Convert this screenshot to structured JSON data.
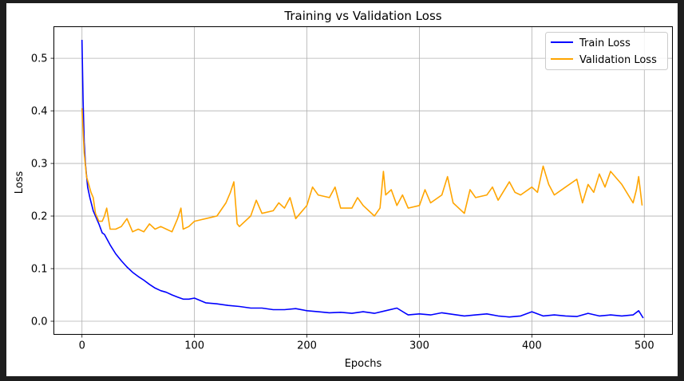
{
  "chart_data": {
    "type": "line",
    "title": "Training vs Validation Loss",
    "xlabel": "Epochs",
    "ylabel": "Loss",
    "xlim": [
      -25,
      525
    ],
    "ylim": [
      -0.025,
      0.56
    ],
    "xticks": [
      0,
      100,
      200,
      300,
      400,
      500
    ],
    "yticks": [
      0.0,
      0.1,
      0.2,
      0.3,
      0.4,
      0.5
    ],
    "xtick_labels": [
      "0",
      "100",
      "200",
      "300",
      "400",
      "500"
    ],
    "ytick_labels": [
      "0.0",
      "0.1",
      "0.2",
      "0.3",
      "0.4",
      "0.5"
    ],
    "grid": true,
    "legend_position": "top-right",
    "series": [
      {
        "name": "Train Loss",
        "color": "#0000ff",
        "x": [
          0,
          1,
          2,
          3,
          5,
          7,
          10,
          12,
          15,
          18,
          20,
          25,
          30,
          35,
          40,
          45,
          50,
          55,
          60,
          65,
          70,
          75,
          80,
          85,
          90,
          95,
          100,
          110,
          120,
          130,
          140,
          150,
          160,
          170,
          180,
          190,
          200,
          210,
          220,
          230,
          240,
          250,
          260,
          270,
          280,
          290,
          300,
          310,
          320,
          330,
          340,
          350,
          360,
          370,
          380,
          390,
          400,
          410,
          420,
          430,
          440,
          450,
          460,
          470,
          480,
          490,
          495,
          499
        ],
        "y": [
          0.535,
          0.42,
          0.34,
          0.3,
          0.255,
          0.235,
          0.21,
          0.2,
          0.185,
          0.168,
          0.165,
          0.145,
          0.128,
          0.115,
          0.103,
          0.093,
          0.085,
          0.078,
          0.07,
          0.063,
          0.058,
          0.055,
          0.05,
          0.046,
          0.042,
          0.042,
          0.044,
          0.035,
          0.033,
          0.03,
          0.028,
          0.025,
          0.025,
          0.022,
          0.022,
          0.024,
          0.02,
          0.018,
          0.016,
          0.017,
          0.015,
          0.018,
          0.015,
          0.02,
          0.025,
          0.012,
          0.014,
          0.012,
          0.016,
          0.013,
          0.01,
          0.012,
          0.014,
          0.01,
          0.008,
          0.01,
          0.018,
          0.01,
          0.012,
          0.01,
          0.009,
          0.015,
          0.01,
          0.012,
          0.01,
          0.012,
          0.02,
          0.006
        ]
      },
      {
        "name": "Validation Loss",
        "color": "#ffa500",
        "x": [
          0,
          2,
          4,
          6,
          8,
          10,
          12,
          15,
          18,
          20,
          22,
          25,
          30,
          35,
          40,
          45,
          50,
          55,
          60,
          65,
          70,
          75,
          80,
          85,
          88,
          90,
          95,
          100,
          110,
          120,
          128,
          132,
          135,
          138,
          140,
          150,
          155,
          160,
          170,
          175,
          180,
          185,
          190,
          200,
          205,
          210,
          220,
          225,
          230,
          240,
          245,
          250,
          260,
          265,
          268,
          270,
          275,
          280,
          285,
          290,
          300,
          305,
          310,
          320,
          325,
          330,
          340,
          345,
          350,
          360,
          365,
          370,
          380,
          385,
          390,
          400,
          405,
          410,
          415,
          420,
          430,
          440,
          445,
          450,
          455,
          460,
          465,
          470,
          480,
          490,
          493,
          495,
          498
        ],
        "y": [
          0.405,
          0.32,
          0.275,
          0.26,
          0.245,
          0.235,
          0.205,
          0.19,
          0.19,
          0.2,
          0.215,
          0.175,
          0.175,
          0.18,
          0.195,
          0.17,
          0.175,
          0.17,
          0.185,
          0.175,
          0.18,
          0.175,
          0.17,
          0.195,
          0.215,
          0.175,
          0.18,
          0.19,
          0.195,
          0.2,
          0.225,
          0.245,
          0.265,
          0.185,
          0.18,
          0.2,
          0.23,
          0.205,
          0.21,
          0.225,
          0.215,
          0.235,
          0.195,
          0.22,
          0.255,
          0.24,
          0.235,
          0.255,
          0.215,
          0.215,
          0.235,
          0.22,
          0.2,
          0.215,
          0.285,
          0.24,
          0.25,
          0.22,
          0.24,
          0.215,
          0.22,
          0.25,
          0.225,
          0.24,
          0.275,
          0.225,
          0.205,
          0.25,
          0.235,
          0.24,
          0.255,
          0.23,
          0.265,
          0.245,
          0.24,
          0.255,
          0.245,
          0.295,
          0.26,
          0.24,
          0.255,
          0.27,
          0.225,
          0.26,
          0.245,
          0.28,
          0.255,
          0.285,
          0.26,
          0.225,
          0.25,
          0.275,
          0.22
        ]
      }
    ]
  }
}
